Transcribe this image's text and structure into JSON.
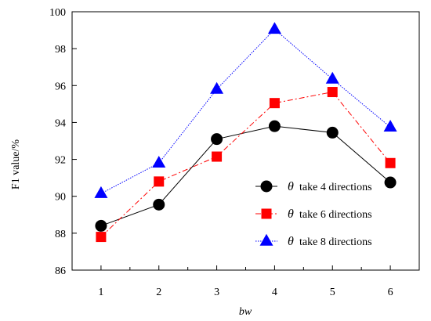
{
  "chart_data": {
    "type": "line",
    "xlabel": "bw",
    "ylabel": "F1 value/%",
    "x": [
      1,
      2,
      3,
      4,
      5,
      6
    ],
    "x_tick_labels": [
      "1",
      "2",
      "3",
      "4",
      "5",
      "6"
    ],
    "ylim": [
      86,
      100
    ],
    "y_ticks": [
      86,
      88,
      90,
      92,
      94,
      96,
      98,
      100
    ],
    "y_tick_labels": [
      "86",
      "88",
      "90",
      "92",
      "94",
      "96",
      "98",
      "100"
    ],
    "grid": false,
    "legend_position": "lower-right",
    "series": [
      {
        "symbol": "θ",
        "name": "take 4 directions",
        "values": [
          88.4,
          89.55,
          93.1,
          93.8,
          93.45,
          90.75
        ],
        "color": "#000000",
        "marker": "circle",
        "line_style": "solid"
      },
      {
        "symbol": "θ",
        "name": "take 6 directions",
        "values": [
          87.8,
          90.8,
          92.15,
          95.05,
          95.65,
          91.8
        ],
        "color": "#ff0000",
        "marker": "square",
        "line_style": "dashdot"
      },
      {
        "symbol": "θ",
        "name": "take 8 directions",
        "values": [
          90.15,
          91.8,
          95.8,
          99.05,
          96.35,
          93.75
        ],
        "color": "#0000ff",
        "marker": "triangle",
        "line_style": "dotted"
      }
    ]
  }
}
